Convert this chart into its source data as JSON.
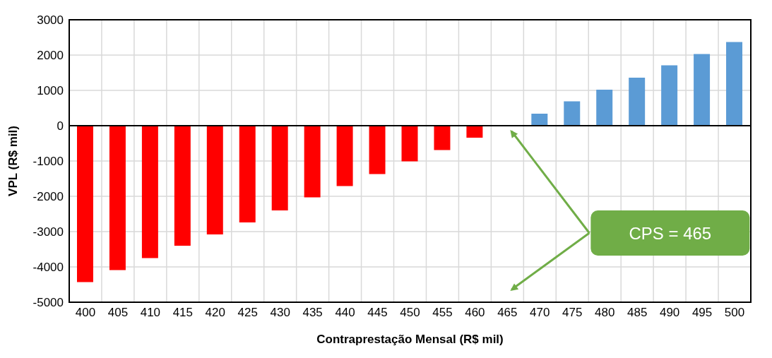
{
  "chart_data": {
    "type": "bar",
    "xlabel": "Contraprestação Mensal (R$ mil)",
    "ylabel": "VPL (R$ mil)",
    "categories": [
      "400",
      "405",
      "410",
      "415",
      "420",
      "425",
      "430",
      "435",
      "440",
      "445",
      "450",
      "455",
      "460",
      "465",
      "470",
      "475",
      "480",
      "485",
      "490",
      "495",
      "500"
    ],
    "values": [
      -4430,
      -4090,
      -3750,
      -3400,
      -3080,
      -2740,
      -2400,
      -2030,
      -1710,
      -1370,
      -1010,
      -690,
      -340,
      0,
      340,
      690,
      1020,
      1360,
      1710,
      2030,
      2370
    ],
    "colors": [
      "#ff0000",
      "#ff0000",
      "#ff0000",
      "#ff0000",
      "#ff0000",
      "#ff0000",
      "#ff0000",
      "#ff0000",
      "#ff0000",
      "#ff0000",
      "#ff0000",
      "#ff0000",
      "#ff0000",
      "#ff0000",
      "#5b9bd5",
      "#5b9bd5",
      "#5b9bd5",
      "#5b9bd5",
      "#5b9bd5",
      "#5b9bd5",
      "#5b9bd5"
    ],
    "ylim": [
      -5000,
      3000
    ],
    "yticks": [
      -5000,
      -4000,
      -3000,
      -2000,
      -1000,
      0,
      1000,
      2000,
      3000
    ],
    "grid": true,
    "legend": false,
    "annotations": [
      "CPS = 465"
    ]
  }
}
